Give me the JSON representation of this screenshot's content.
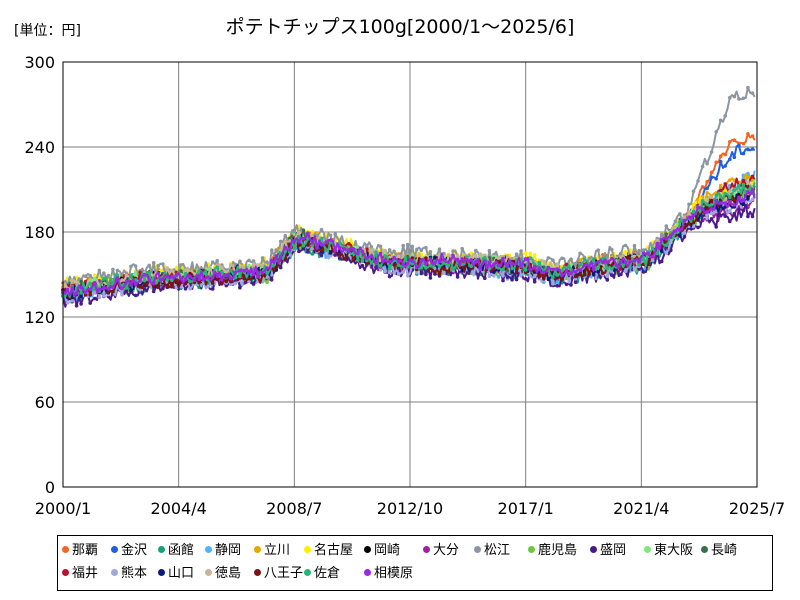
{
  "chart_data": {
    "type": "line",
    "unit_label": "[単位：円]",
    "title": "ポテトチップス100g[2000/1～2025/6]",
    "x_ticks": [
      "2000/1",
      "2004/4",
      "2008/7",
      "2012/10",
      "2017/1",
      "2021/4",
      "2025/7"
    ],
    "x_range": [
      "2000/1",
      "2025/7"
    ],
    "ylim": [
      0,
      300
    ],
    "y_ticks": [
      0,
      60,
      120,
      180,
      240,
      300
    ],
    "grid": true,
    "legend_position": "bottom",
    "series": [
      {
        "name": "那覇",
        "color": "#f26522",
        "base": 150,
        "high": 237,
        "offset": 3,
        "jitter": 6
      },
      {
        "name": "金沢",
        "color": "#1f5fe0",
        "base": 142,
        "high": 232,
        "offset": 0,
        "jitter": 8
      },
      {
        "name": "函館",
        "color": "#12a37a",
        "base": 135,
        "high": 205,
        "offset": -4,
        "jitter": 9
      },
      {
        "name": "静岡",
        "color": "#4fb3ff",
        "base": 125,
        "high": 215,
        "offset": -3,
        "jitter": 10
      },
      {
        "name": "立川",
        "color": "#e6a800",
        "base": 148,
        "high": 210,
        "offset": 2,
        "jitter": 8
      },
      {
        "name": "名古屋",
        "color": "#ffee00",
        "base": 145,
        "high": 200,
        "offset": 4,
        "jitter": 9
      },
      {
        "name": "岡崎",
        "color": "#000000",
        "base": 140,
        "high": 200,
        "offset": 0,
        "jitter": 8
      },
      {
        "name": "大分",
        "color": "#a020a0",
        "base": 138,
        "high": 195,
        "offset": -2,
        "jitter": 9
      },
      {
        "name": "松江",
        "color": "#8c96a0",
        "base": 140,
        "high": 265,
        "offset": 6,
        "jitter": 10
      },
      {
        "name": "鹿児島",
        "color": "#6cc83c",
        "base": 130,
        "high": 205,
        "offset": -3,
        "jitter": 9
      },
      {
        "name": "盛岡",
        "color": "#4a1a8c",
        "base": 135,
        "high": 195,
        "offset": -6,
        "jitter": 10
      },
      {
        "name": "東大阪",
        "color": "#7ee87e",
        "base": 140,
        "high": 205,
        "offset": 1,
        "jitter": 8
      },
      {
        "name": "長崎",
        "color": "#3c6e4c",
        "base": 138,
        "high": 200,
        "offset": 0,
        "jitter": 8
      },
      {
        "name": "福井",
        "color": "#b4142c",
        "base": 145,
        "high": 210,
        "offset": 0,
        "jitter": 9
      },
      {
        "name": "熊本",
        "color": "#a0a8dc",
        "base": 128,
        "high": 200,
        "offset": -4,
        "jitter": 9
      },
      {
        "name": "山口",
        "color": "#0a1a78",
        "base": 136,
        "high": 200,
        "offset": -1,
        "jitter": 9
      },
      {
        "name": "徳島",
        "color": "#c8b496",
        "base": 140,
        "high": 205,
        "offset": 2,
        "jitter": 8
      },
      {
        "name": "八王子",
        "color": "#7a1414",
        "base": 138,
        "high": 205,
        "offset": -2,
        "jitter": 9
      },
      {
        "name": "佐倉",
        "color": "#28b47a",
        "base": 136,
        "high": 205,
        "offset": 0,
        "jitter": 9
      },
      {
        "name": "相模原",
        "color": "#9a28e6",
        "base": 138,
        "high": 200,
        "offset": 0,
        "jitter": 8
      }
    ]
  }
}
